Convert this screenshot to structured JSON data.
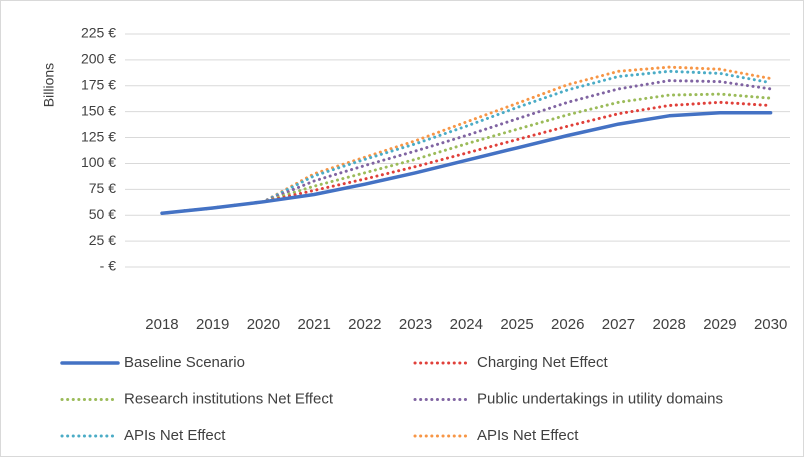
{
  "chart_data": {
    "type": "line",
    "y_axis_label": "Billions",
    "categories": [
      "2018",
      "2019",
      "2020",
      "2021",
      "2022",
      "2023",
      "2024",
      "2025",
      "2026",
      "2027",
      "2028",
      "2029",
      "2030"
    ],
    "series": [
      {
        "name": "Baseline Scenario",
        "color": "#4472c4",
        "style": "solid",
        "values": [
          52,
          57,
          63,
          70,
          80,
          91,
          103,
          115,
          127,
          138,
          146,
          149,
          149
        ]
      },
      {
        "name": "Charging Net Effect",
        "color": "#e0403a",
        "style": "dotted",
        "values": [
          52,
          57,
          63,
          74,
          85,
          97,
          110,
          123,
          136,
          148,
          156,
          159,
          156
        ]
      },
      {
        "name": "Research institutions Net Effect",
        "color": "#9bbb59",
        "style": "dotted",
        "values": [
          52,
          57,
          63,
          78,
          91,
          104,
          119,
          133,
          147,
          159,
          166,
          167,
          163
        ]
      },
      {
        "name": "Public undertakings in utility domains",
        "color": "#8064a2",
        "style": "dotted",
        "values": [
          52,
          57,
          63,
          83,
          98,
          112,
          127,
          143,
          159,
          172,
          180,
          179,
          172
        ]
      },
      {
        "name": "APIs Net Effect",
        "color": "#4bacc6",
        "style": "dotted",
        "values": [
          52,
          57,
          63,
          88,
          104,
          119,
          136,
          154,
          171,
          184,
          189,
          187,
          178
        ]
      },
      {
        "name": "APIs Net Effect",
        "color": "#f79646",
        "style": "dotted",
        "values": [
          52,
          57,
          63,
          90,
          106,
          122,
          140,
          158,
          176,
          189,
          193,
          191,
          182
        ]
      }
    ],
    "ylim": [
      0,
      225
    ],
    "yticks": [
      {
        "value": 0,
        "label": "-  €"
      },
      {
        "value": 25,
        "label": "25 €"
      },
      {
        "value": 50,
        "label": "50 €"
      },
      {
        "value": 75,
        "label": "75 €"
      },
      {
        "value": 100,
        "label": "100 €"
      },
      {
        "value": 125,
        "label": "125 €"
      },
      {
        "value": 150,
        "label": "150 €"
      },
      {
        "value": 175,
        "label": "175 €"
      },
      {
        "value": 200,
        "label": "200 €"
      },
      {
        "value": 225,
        "label": "225 €"
      }
    ],
    "grid": true,
    "legend": "bottom"
  }
}
